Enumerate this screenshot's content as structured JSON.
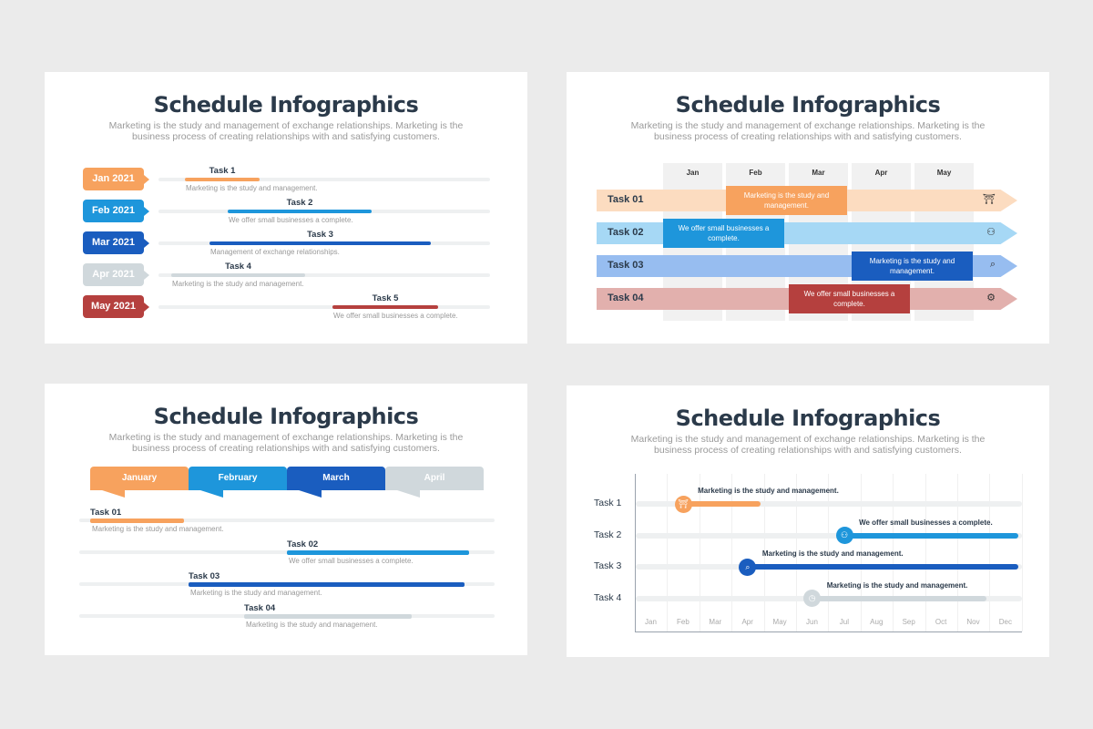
{
  "slides": [
    {
      "title": "Schedule Infographics",
      "subtitle": "Marketing is the study and management of exchange relationships. Marketing is the business process of creating relationships with and satisfying customers.",
      "rows": [
        {
          "date": "Jan 2021",
          "task": "Task 1",
          "desc": "Marketing is the study and management.",
          "color": "#f7a25e"
        },
        {
          "date": "Feb 2021",
          "task": "Task 2",
          "desc": "We offer small businesses a complete.",
          "color": "#1e96db"
        },
        {
          "date": "Mar 2021",
          "task": "Task 3",
          "desc": "Management of exchange relationships.",
          "color": "#1a5dbf"
        },
        {
          "date": "Apr 2021",
          "task": "Task 4",
          "desc": "Marketing is the study and management.",
          "color": "#d0d8dc"
        },
        {
          "date": "May 2021",
          "task": "Task 5",
          "desc": "We offer small businesses a complete.",
          "color": "#b5403e"
        }
      ]
    },
    {
      "title": "Schedule Infographics",
      "subtitle": "Marketing is the study and management of exchange relationships. Marketing is the business process of creating relationships with and satisfying customers.",
      "months": [
        "Jan",
        "Feb",
        "Mar",
        "Apr",
        "May"
      ],
      "rows": [
        {
          "task": "Task 01",
          "desc": "Marketing is the study and management.",
          "color": "#f7a25e",
          "light": "#fcdcc0",
          "icon": "person-door-icon",
          "glyph": "⛩"
        },
        {
          "task": "Task 02",
          "desc": "We offer small businesses a complete.",
          "color": "#1e96db",
          "light": "#a6d8f5",
          "icon": "hierarchy-icon",
          "glyph": "⚇"
        },
        {
          "task": "Task 03",
          "desc": "Marketing is the study and management.",
          "color": "#1a5dbf",
          "light": "#97bdf0",
          "icon": "search-user-icon",
          "glyph": "⌕"
        },
        {
          "task": "Task 04",
          "desc": "We offer small businesses a complete.",
          "color": "#b5403e",
          "light": "#e2b0ad",
          "icon": "gear-user-icon",
          "glyph": "⚙"
        }
      ]
    },
    {
      "title": "Schedule Infographics",
      "subtitle": "Marketing is the study and management of exchange relationships. Marketing is the business process of creating relationships with and satisfying customers.",
      "months": [
        {
          "label": "January",
          "color": "#f7a25e"
        },
        {
          "label": "February",
          "color": "#1e96db"
        },
        {
          "label": "March",
          "color": "#1a5dbf"
        },
        {
          "label": "April",
          "color": "#d0d8dc"
        }
      ],
      "rows": [
        {
          "task": "Task 01",
          "desc": "Marketing is the study and management.",
          "color": "#f7a25e"
        },
        {
          "task": "Task 02",
          "desc": "We offer small businesses a complete.",
          "color": "#1e96db"
        },
        {
          "task": "Task 03",
          "desc": "Marketing is the study and management.",
          "color": "#1a5dbf"
        },
        {
          "task": "Task 04",
          "desc": "Marketing is the study and management.",
          "color": "#d0d8dc"
        }
      ]
    },
    {
      "title": "Schedule Infographics",
      "subtitle": "Marketing is the study and management of exchange relationships. Marketing is the business process of creating relationships with and satisfying customers.",
      "months": [
        "Jan",
        "Feb",
        "Mar",
        "Apr",
        "May",
        "Jun",
        "Jul",
        "Aug",
        "Sep",
        "Oct",
        "Nov",
        "Dec"
      ],
      "rows": [
        {
          "task": "Task 1",
          "desc": "Marketing is the study and management.",
          "color": "#f7a25e",
          "start": "Feb",
          "end": "Apr",
          "icon": "person-door-icon",
          "glyph": "⛩"
        },
        {
          "task": "Task 2",
          "desc": "We offer small businesses a complete.",
          "color": "#1e96db",
          "start": "Jul",
          "end": "Dec",
          "icon": "hierarchy-icon",
          "glyph": "⚇"
        },
        {
          "task": "Task 3",
          "desc": "Marketing is the study and management.",
          "color": "#1a5dbf",
          "start": "Apr",
          "end": "Dec",
          "icon": "search-user-icon",
          "glyph": "⌕"
        },
        {
          "task": "Task 4",
          "desc": "Marketing is the study and management.",
          "color": "#d0d8dc",
          "start": "Jun",
          "end": "Nov",
          "icon": "clock-icon",
          "glyph": "◷"
        }
      ]
    }
  ]
}
